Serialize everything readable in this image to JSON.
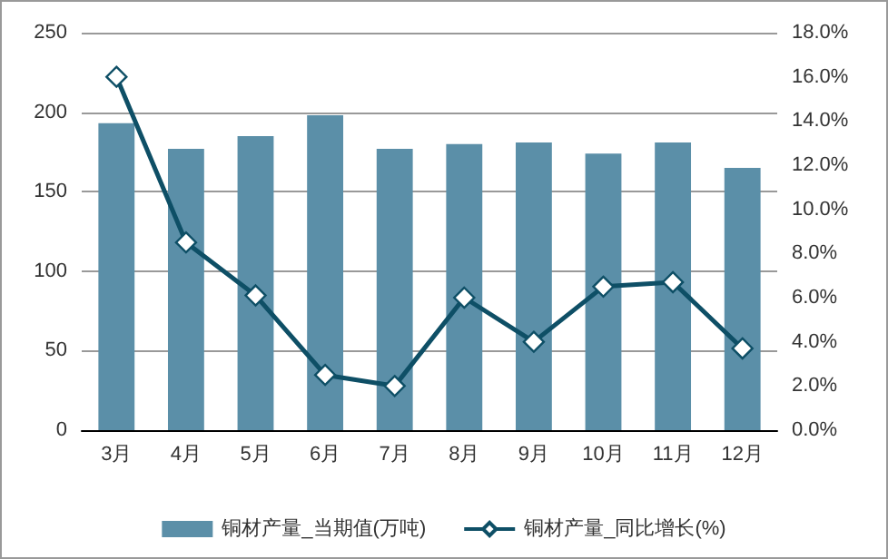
{
  "chart_data": {
    "type": "bar",
    "categories": [
      "3月",
      "4月",
      "5月",
      "6月",
      "7月",
      "8月",
      "9月",
      "10月",
      "11月",
      "12月"
    ],
    "series": [
      {
        "name": "铜材产量_当期值(万吨)",
        "color": "#5b8fa8",
        "values": [
          193,
          177,
          185,
          198,
          177,
          180,
          181,
          174,
          181,
          165
        ]
      },
      {
        "name": "铜材产量_同比增长(%)",
        "type": "line",
        "axis": "y2",
        "color": "#0e4f66",
        "marker": "diamond",
        "values": [
          16.0,
          8.5,
          6.1,
          2.5,
          2.0,
          6.0,
          4.0,
          6.5,
          6.7,
          3.7
        ]
      }
    ],
    "ylim": [
      0,
      250
    ],
    "yticks": [
      0,
      50,
      100,
      150,
      200,
      250
    ],
    "y2lim": [
      0,
      18
    ],
    "y2ticks": [
      {
        "value": 0,
        "label": "0.0%"
      },
      {
        "value": 2,
        "label": "2.0%"
      },
      {
        "value": 4,
        "label": "4.0%"
      },
      {
        "value": 6,
        "label": "6.0%"
      },
      {
        "value": 8,
        "label": "8.0%"
      },
      {
        "value": 10,
        "label": "10.0%"
      },
      {
        "value": 12,
        "label": "12.0%"
      },
      {
        "value": 14,
        "label": "14.0%"
      },
      {
        "value": 16,
        "label": "16.0%"
      },
      {
        "value": 18,
        "label": "18.0%"
      }
    ],
    "grid": "y",
    "legend": "bottom"
  }
}
